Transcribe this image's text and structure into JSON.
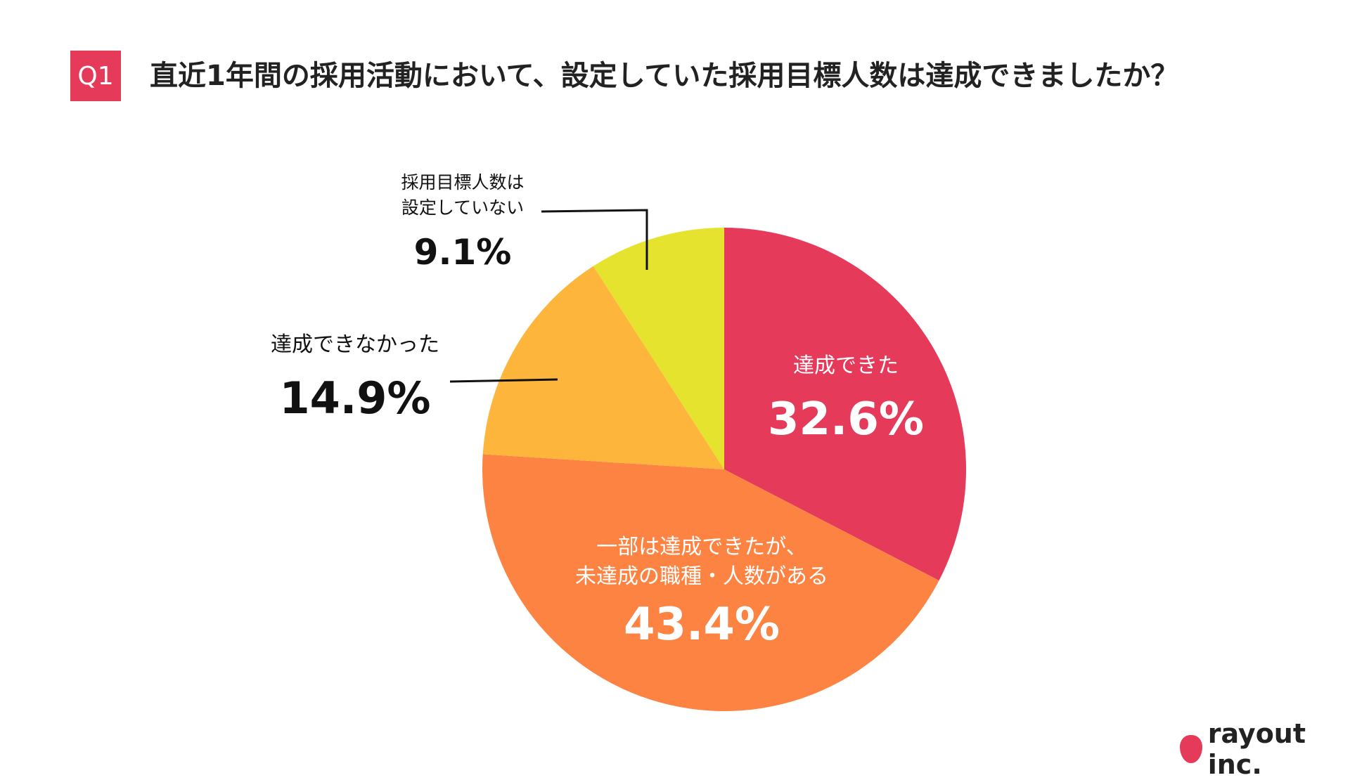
{
  "header": {
    "badge": "Q1",
    "question": "直近1年間の採用活動において、設定していた採用目標人数は達成できましたか？"
  },
  "chart_data": {
    "type": "pie",
    "slices": [
      {
        "label_lines": [
          "達成できた"
        ],
        "value": 32.6,
        "value_label": "32.6%",
        "color": "#e63a5b"
      },
      {
        "label_lines": [
          "一部は達成できたが、",
          "未達成の職種・人数がある"
        ],
        "value": 43.4,
        "value_label": "43.4%",
        "color": "#fd8342"
      },
      {
        "label_lines": [
          "達成できなかった"
        ],
        "value": 14.9,
        "value_label": "14.9%",
        "color": "#fdb53c"
      },
      {
        "label_lines": [
          "採用目標人数は",
          "設定していない"
        ],
        "value": 9.1,
        "value_label": "9.1%",
        "color": "#e6e32e"
      }
    ],
    "start": "12 o'clock",
    "direction": "clockwise"
  },
  "logo": {
    "text": "rayout inc."
  }
}
